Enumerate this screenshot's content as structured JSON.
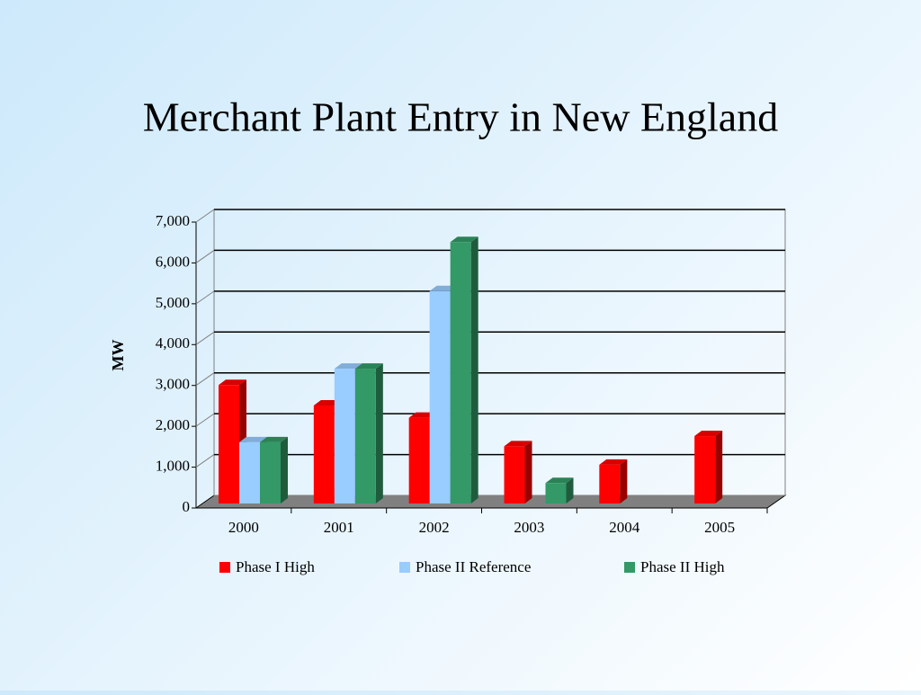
{
  "chart_data": {
    "type": "bar3d",
    "title": "Merchant Plant Entry in New England",
    "y_label": "MW",
    "categories": [
      "2000",
      "2001",
      "2002",
      "2003",
      "2004",
      "2005"
    ],
    "series": [
      {
        "name": "Phase I High",
        "color": "#ff0000",
        "values": [
          2900,
          2400,
          2100,
          1400,
          950,
          1650
        ]
      },
      {
        "name": "Phase II Reference",
        "color": "#99ccff",
        "values": [
          1500,
          3300,
          5200,
          null,
          null,
          null
        ]
      },
      {
        "name": "Phase II High",
        "color": "#339966",
        "values": [
          1500,
          3300,
          6400,
          500,
          null,
          null
        ]
      }
    ],
    "ylim": [
      0,
      7000
    ],
    "yticks": [
      0,
      {
        "value": 1000,
        "label": "1,000"
      },
      {
        "value": 2000,
        "label": "2,000"
      },
      {
        "value": 3000,
        "label": "3,000"
      },
      {
        "value": 4000,
        "label": "4,000"
      },
      {
        "value": 5000,
        "label": "5,000"
      },
      {
        "value": 6000,
        "label": "6,000"
      },
      {
        "value": 7000,
        "label": "7,000"
      }
    ],
    "grid": true
  }
}
